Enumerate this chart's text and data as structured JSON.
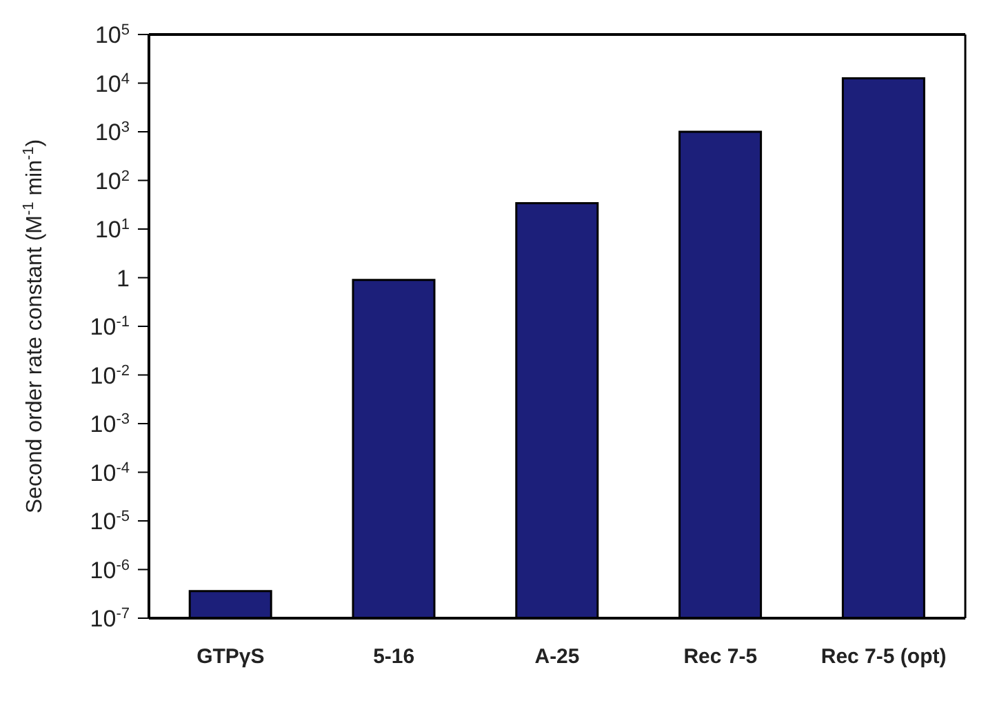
{
  "chart_data": {
    "type": "bar",
    "ylabel": "Second order rate constant (M$^{-1}$ min$^{-1}$)",
    "categories": [
      "GTPγS",
      "5-16",
      "A-25",
      "Rec 7-5",
      "Rec 7-5 (opt)"
    ],
    "values": [
      3.6e-07,
      0.9,
      34,
      1000,
      12600
    ],
    "color": "#1c1f7a",
    "log": true,
    "ylim": [
      1e-07,
      100000
    ],
    "yticks": [
      {
        "value": 1e-07,
        "label": "10$^{-7}$"
      },
      {
        "value": 1e-06,
        "label": "10$^{-6}$"
      },
      {
        "value": 1e-05,
        "label": "10$^{-5}$"
      },
      {
        "value": 0.0001,
        "label": "10$^{-4}$"
      },
      {
        "value": 0.001,
        "label": "10$^{-3}$"
      },
      {
        "value": 0.01,
        "label": "10$^{-2}$"
      },
      {
        "value": 0.1,
        "label": "10$^{-1}$"
      },
      1,
      {
        "value": 10,
        "label": "10$^{1}$"
      },
      {
        "value": 100,
        "label": "10$^{2}$"
      },
      {
        "value": 1000,
        "label": "10$^{3}$"
      },
      {
        "value": 10000,
        "label": "10$^{4}$"
      },
      {
        "value": 100000,
        "label": "10$^{5}$"
      }
    ],
    "grid": false,
    "legend": false
  }
}
